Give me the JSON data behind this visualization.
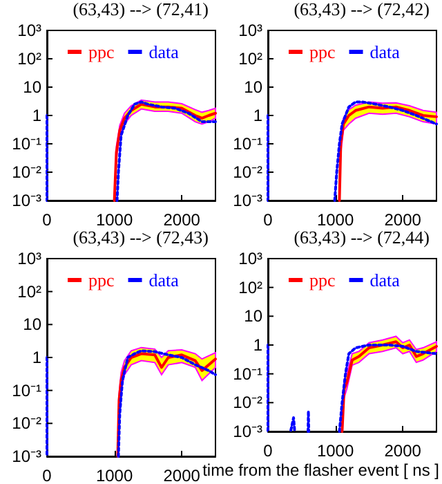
{
  "chart_data": [
    {
      "type": "line",
      "title": "(63,43) --> (72,41)",
      "log": "y",
      "grid": false,
      "legend": "top",
      "marker": "none",
      "xlim": [
        0,
        2500
      ],
      "xticks": [
        0,
        1000,
        2000
      ],
      "ylim": [
        0.001,
        1000
      ],
      "yticks": [
        {
          "value": 0.001,
          "label": "10⁻³"
        },
        {
          "value": 0.01,
          "label": "10⁻²"
        },
        {
          "value": 0.1,
          "label": "10⁻¹"
        },
        {
          "value": 1,
          "label": "1"
        },
        {
          "value": 10,
          "label": "10"
        },
        {
          "value": 100,
          "label": "10²"
        },
        {
          "value": 1000,
          "label": "10³"
        }
      ],
      "series": [
        {
          "name": "ppc",
          "color": "#ff0000",
          "line_style": "solid",
          "x": [
            1000,
            1030,
            1080,
            1150,
            1250,
            1400,
            1600,
            1800,
            2000,
            2200,
            2300,
            2400,
            2500
          ],
          "values": [
            0.001,
            0.05,
            0.3,
            0.8,
            1.5,
            2.5,
            2,
            2,
            1.8,
            1,
            0.8,
            1,
            1.2
          ],
          "upper": [
            null,
            0.08,
            0.45,
            1.2,
            2.2,
            3.5,
            3,
            3,
            2.6,
            1.6,
            1.3,
            1.5,
            1.8
          ],
          "lower": [
            null,
            0.03,
            0.2,
            0.5,
            1,
            1.7,
            1.4,
            1.4,
            1.2,
            0.6,
            0.5,
            0.6,
            0.8
          ]
        },
        {
          "name": "data",
          "color": "#0000ff",
          "line_style": "dotted",
          "x": [
            0,
            0,
            500,
            1040,
            1060,
            1100,
            1200,
            1300,
            1400,
            1500,
            1700,
            1900,
            2100,
            2300,
            2500
          ],
          "values": [
            1,
            0.001,
            null,
            0.001,
            0.01,
            0.2,
            1,
            2.5,
            3,
            2.5,
            2,
            1.8,
            1.2,
            0.6,
            0.6
          ]
        }
      ]
    },
    {
      "type": "line",
      "title": "(63,43) --> (72,42)",
      "log": "y",
      "grid": false,
      "legend": "top",
      "marker": "none",
      "xlim": [
        0,
        2500
      ],
      "xticks": [
        0,
        1000,
        2000
      ],
      "ylim": [
        0.001,
        1000
      ],
      "yticks": [
        {
          "value": 0.001,
          "label": "10⁻³"
        },
        {
          "value": 0.01,
          "label": "10⁻²"
        },
        {
          "value": 0.1,
          "label": "10⁻¹"
        },
        {
          "value": 1,
          "label": "1"
        },
        {
          "value": 10,
          "label": "10"
        },
        {
          "value": 100,
          "label": "10²"
        },
        {
          "value": 1000,
          "label": "10³"
        }
      ],
      "series": [
        {
          "name": "ppc",
          "color": "#ff0000",
          "line_style": "solid",
          "x": [
            1060,
            1080,
            1120,
            1200,
            1300,
            1500,
            1700,
            1900,
            2100,
            2300,
            2500
          ],
          "values": [
            0.001,
            0.1,
            0.5,
            1,
            1.5,
            2,
            1.8,
            2,
            1.5,
            1,
            0.9
          ],
          "upper": [
            null,
            0.15,
            0.8,
            1.6,
            2.3,
            3,
            2.7,
            2.8,
            2.2,
            1.5,
            1.3
          ],
          "lower": [
            null,
            0.05,
            0.3,
            0.5,
            0.8,
            1.2,
            1.1,
            1.2,
            0.9,
            0.6,
            0.5
          ]
        },
        {
          "name": "data",
          "color": "#0000ff",
          "line_style": "dotted",
          "x": [
            0,
            0,
            500,
            990,
            1020,
            1060,
            1100,
            1200,
            1300,
            1400,
            1600,
            1800,
            2000,
            2200,
            2500
          ],
          "values": [
            1,
            0.001,
            null,
            0.001,
            0.01,
            0.1,
            0.5,
            2,
            3,
            3,
            2.5,
            2,
            1.5,
            1,
            0.5
          ]
        }
      ]
    },
    {
      "type": "line",
      "title": "(63,43) --> (72,43)",
      "log": "y",
      "grid": false,
      "legend": "top",
      "marker": "none",
      "xlim": [
        0,
        2500
      ],
      "xticks": [
        0,
        1000,
        2000
      ],
      "ylim": [
        0.001,
        1000
      ],
      "yticks": [
        {
          "value": 0.001,
          "label": "10⁻³"
        },
        {
          "value": 0.01,
          "label": "10⁻²"
        },
        {
          "value": 0.1,
          "label": "10⁻¹"
        },
        {
          "value": 1,
          "label": "1"
        },
        {
          "value": 10,
          "label": "10"
        },
        {
          "value": 100,
          "label": "10²"
        },
        {
          "value": 1000,
          "label": "10³"
        }
      ],
      "series": [
        {
          "name": "ppc",
          "color": "#ff0000",
          "line_style": "solid",
          "x": [
            1050,
            1070,
            1100,
            1150,
            1250,
            1400,
            1600,
            1700,
            1800,
            2000,
            2200,
            2300,
            2500
          ],
          "values": [
            0.001,
            0.05,
            0.2,
            0.5,
            1,
            1.3,
            1.2,
            0.5,
            1,
            1.2,
            0.8,
            0.4,
            0.9
          ],
          "upper": [
            null,
            0.08,
            0.35,
            0.8,
            1.6,
            2,
            1.8,
            1,
            1.6,
            1.7,
            1.3,
            0.9,
            1.4
          ],
          "lower": [
            null,
            0.03,
            0.1,
            0.3,
            0.6,
            0.8,
            0.7,
            0.3,
            0.6,
            0.7,
            0.5,
            0.2,
            0.5
          ]
        },
        {
          "name": "data",
          "color": "#0000ff",
          "line_style": "dotted",
          "x": [
            0,
            0,
            500,
            1060,
            1080,
            1120,
            1200,
            1300,
            1400,
            1600,
            1800,
            2000,
            2200,
            2400,
            2500
          ],
          "values": [
            1,
            0.001,
            null,
            0.001,
            0.02,
            0.2,
            1,
            1.3,
            1.6,
            1.5,
            1.2,
            1,
            0.6,
            0.4,
            0.3
          ]
        }
      ]
    },
    {
      "type": "line",
      "title": "(63,43) --> (72,44)",
      "xlabel": "time from the flasher event [ ns ]",
      "log": "y",
      "grid": false,
      "legend": "top",
      "marker": "none",
      "xlim": [
        0,
        2500
      ],
      "xticks": [
        0,
        1000,
        2000
      ],
      "ylim": [
        0.001,
        1000
      ],
      "yticks": [
        {
          "value": 0.001,
          "label": "10⁻³"
        },
        {
          "value": 0.01,
          "label": "10⁻²"
        },
        {
          "value": 0.1,
          "label": "10⁻¹"
        },
        {
          "value": 1,
          "label": "1"
        },
        {
          "value": 10,
          "label": "10"
        },
        {
          "value": 100,
          "label": "10²"
        },
        {
          "value": 1000,
          "label": "10³"
        }
      ],
      "series": [
        {
          "name": "ppc",
          "color": "#ff0000",
          "line_style": "solid",
          "x": [
            1100,
            1130,
            1170,
            1250,
            1350,
            1500,
            1700,
            1900,
            2000,
            2100,
            2200,
            2300,
            2500
          ],
          "values": [
            0.001,
            0.03,
            0.05,
            0.3,
            0.4,
            0.8,
            1,
            1.3,
            0.8,
            1,
            0.4,
            0.5,
            0.9
          ],
          "upper": [
            null,
            0.06,
            0.1,
            0.5,
            0.6,
            1.2,
            1.5,
            2,
            1.2,
            1.5,
            0.7,
            0.8,
            1.3
          ],
          "lower": [
            null,
            0.015,
            0.03,
            0.2,
            0.25,
            0.5,
            0.6,
            0.8,
            0.5,
            0.6,
            0.25,
            0.3,
            0.6
          ]
        },
        {
          "name": "data",
          "color": "#0000ff",
          "line_style": "dotted",
          "x": [
            0,
            0,
            200,
            340,
            380,
            395,
            450,
            595,
            600,
            605,
            800,
            1060,
            1100,
            1150,
            1200,
            1300,
            1500,
            1800,
            2000,
            2200,
            2500
          ],
          "values": [
            1,
            0.001,
            null,
            0.0011,
            0.003,
            0.0011,
            null,
            0.001,
            0.005,
            0.001,
            null,
            0.001,
            0.01,
            0.1,
            0.5,
            0.8,
            1,
            1,
            0.9,
            0.6,
            0.5
          ]
        }
      ]
    }
  ]
}
